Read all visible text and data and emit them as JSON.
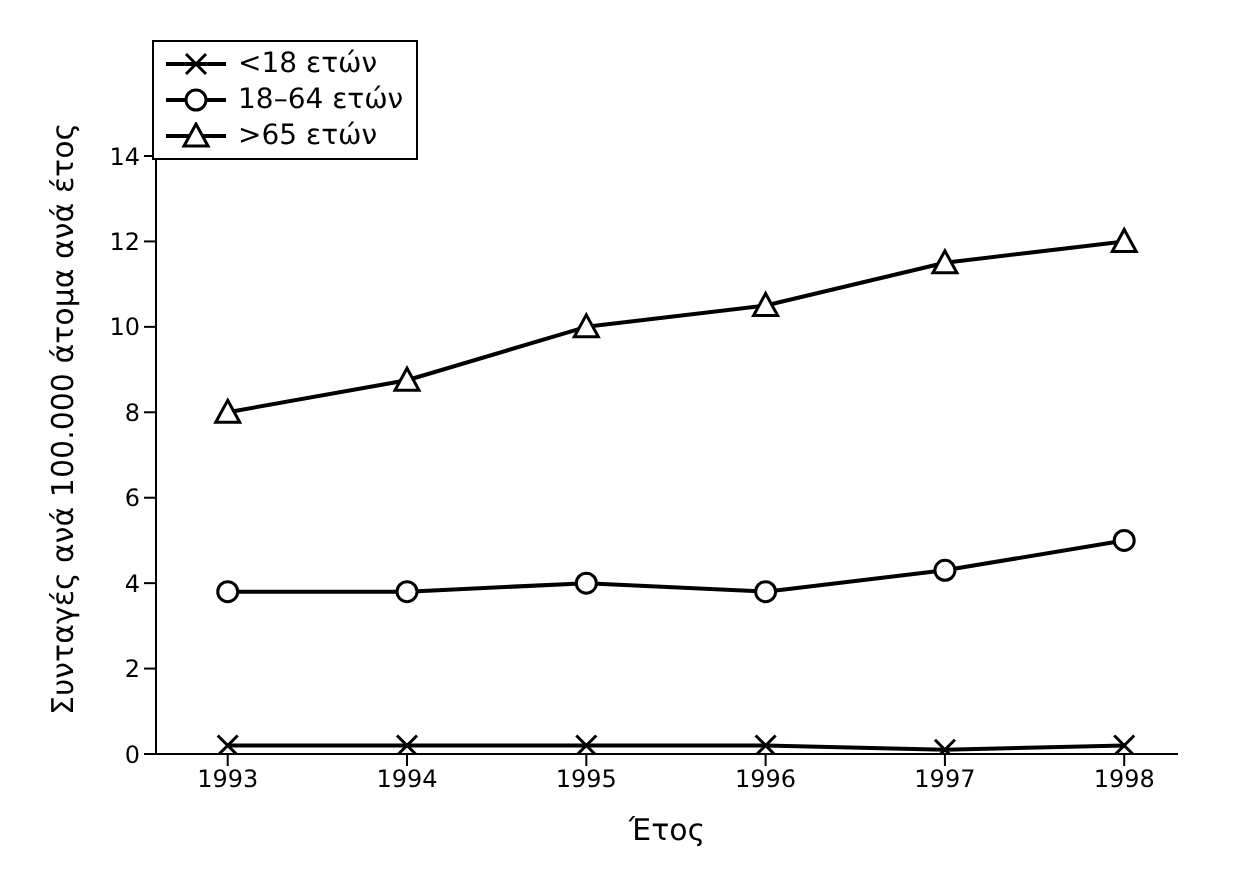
{
  "chart_data": {
    "type": "line",
    "xlabel": "Έτος",
    "ylabel": "Συνταγές ανά 100.000 άτομα ανά έτος",
    "x": [
      1993,
      1994,
      1995,
      1996,
      1997,
      1998
    ],
    "xlim": [
      1992.6,
      1998.3
    ],
    "xticks": [
      1993,
      1994,
      1995,
      1996,
      1997,
      1998
    ],
    "ylim": [
      0,
      14
    ],
    "yticks": [
      0,
      2,
      4,
      6,
      8,
      10,
      12,
      14
    ],
    "grid": false,
    "legend": "top left",
    "series": [
      {
        "name": "<18 ετών",
        "color": "#000000",
        "marker": "cross",
        "values": [
          0.2,
          0.2,
          0.2,
          0.2,
          0.1,
          0.2
        ]
      },
      {
        "name": "18–64 ετών",
        "color": "#000000",
        "marker": "circle",
        "values": [
          3.8,
          3.8,
          4.0,
          3.8,
          4.3,
          5.0
        ]
      },
      {
        "name": ">65 ετών",
        "color": "#000000",
        "marker": "triangle",
        "values": [
          8,
          8.75,
          10,
          10.5,
          11.5,
          12
        ]
      }
    ]
  }
}
